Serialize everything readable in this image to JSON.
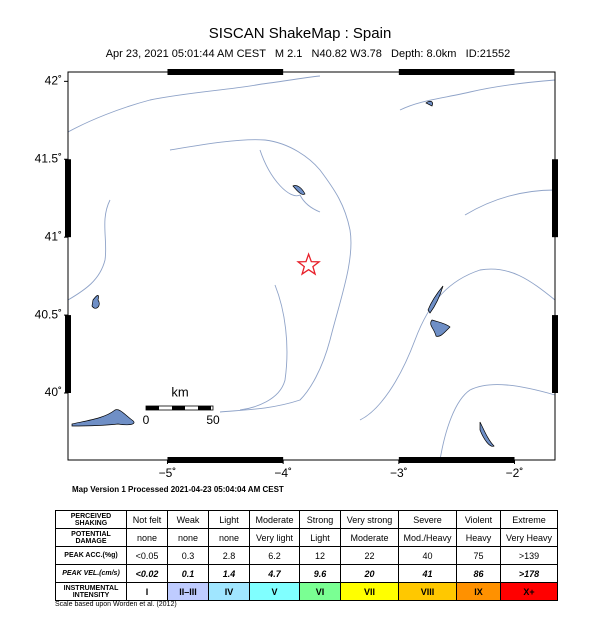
{
  "header": {
    "title": "SISCAN ShakeMap : Spain",
    "subtitle": "Apr 23, 2021 05:01:44 AM CEST   M 2.1   N40.82 W3.78   Depth: 8.0km   ID:21552"
  },
  "map": {
    "xlim": [
      -5.86,
      -1.65
    ],
    "ylim": [
      39.57,
      42.06
    ],
    "xticks": [
      {
        "value": -5,
        "label": "−5˚"
      },
      {
        "value": -4,
        "label": "−4˚"
      },
      {
        "value": -3,
        "label": "−3˚"
      },
      {
        "value": -2,
        "label": "−2˚"
      }
    ],
    "yticks": [
      {
        "value": 40,
        "label": "40˚"
      },
      {
        "value": 40.5,
        "label": "40.5˚"
      },
      {
        "value": 41,
        "label": "41˚"
      },
      {
        "value": 41.5,
        "label": "41.5˚"
      },
      {
        "value": 42,
        "label": "42˚"
      }
    ],
    "epicenter": {
      "lon": -3.78,
      "lat": 40.82,
      "color": "#e8202a"
    },
    "scale": {
      "unit": "km",
      "start": "0",
      "end": "50"
    }
  },
  "footer": "Map Version 1 Processed 2021-04-23 05:04:04 AM CEST",
  "table": {
    "rows": [
      [
        "PERCEIVED SHAKING",
        "Not felt",
        "Weak",
        "Light",
        "Moderate",
        "Strong",
        "Very strong",
        "Severe",
        "Violent",
        "Extreme"
      ],
      [
        "POTENTIAL DAMAGE",
        "none",
        "none",
        "none",
        "Very light",
        "Light",
        "Moderate",
        "Mod./Heavy",
        "Heavy",
        "Very Heavy"
      ],
      [
        "PEAK ACC.(%g)",
        "<0.05",
        "0.3",
        "2.8",
        "6.2",
        "12",
        "22",
        "40",
        "75",
        ">139"
      ],
      [
        "PEAK VEL.(cm/s)",
        "<0.02",
        "0.1",
        "1.4",
        "4.7",
        "9.6",
        "20",
        "41",
        "86",
        ">178"
      ],
      [
        "INSTRUMENTAL INTENSITY",
        "I",
        "II–III",
        "IV",
        "V",
        "VI",
        "VII",
        "VIII",
        "IX",
        "X+"
      ]
    ],
    "intensity_colors": [
      "#ffffff",
      "#bfccff",
      "#a0e6ff",
      "#80ffff",
      "#7aff93",
      "#ffff00",
      "#ffc800",
      "#ff9100",
      "#ff0000"
    ],
    "note": "Scale based upon Worden et al. (2012)"
  }
}
